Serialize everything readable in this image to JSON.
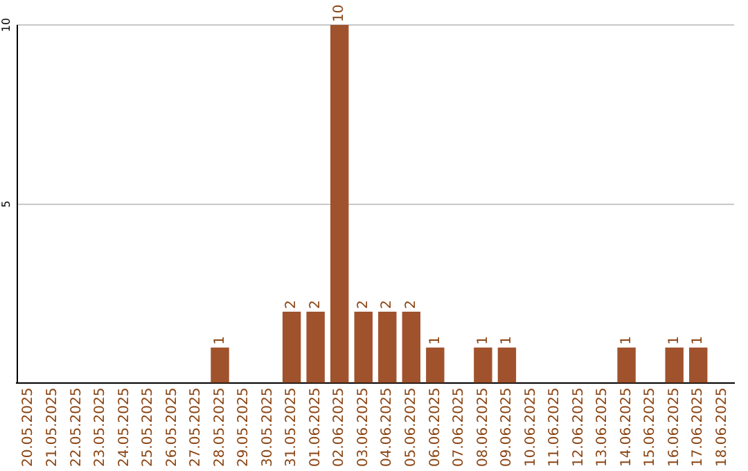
{
  "chart_data": {
    "type": "bar",
    "categories": [
      "20.05.2025",
      "21.05.2025",
      "22.05.2025",
      "23.05.2025",
      "24.05.2025",
      "25.05.2025",
      "26.05.2025",
      "27.05.2025",
      "28.05.2025",
      "29.05.2025",
      "30.05.2025",
      "31.05.2025",
      "01.06.2025",
      "02.06.2025",
      "03.06.2025",
      "04.06.2025",
      "05.06.2025",
      "06.06.2025",
      "07.06.2025",
      "08.06.2025",
      "09.06.2025",
      "10.06.2025",
      "11.06.2025",
      "12.06.2025",
      "13.06.2025",
      "14.06.2025",
      "15.06.2025",
      "16.06.2025",
      "17.06.2025",
      "18.06.2025"
    ],
    "values": [
      0,
      0,
      0,
      0,
      0,
      0,
      0,
      0,
      1,
      0,
      0,
      2,
      2,
      10,
      2,
      2,
      2,
      1,
      0,
      1,
      1,
      0,
      0,
      0,
      0,
      1,
      0,
      1,
      1,
      0
    ],
    "value_labels": [
      null,
      null,
      null,
      null,
      null,
      null,
      null,
      null,
      "1",
      null,
      null,
      "2",
      "2",
      "10",
      "2",
      "2",
      "2",
      "1",
      null,
      "1",
      "1",
      null,
      null,
      null,
      null,
      "1",
      null,
      "1",
      "1",
      null
    ],
    "color": "#a0522d",
    "ylim": [
      0,
      10
    ],
    "yticks": [
      {
        "value": 0,
        "label": null
      },
      5,
      10
    ],
    "grid": "y",
    "legend": false
  }
}
